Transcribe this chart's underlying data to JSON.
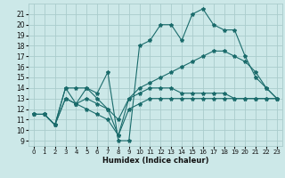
{
  "xlabel": "Humidex (Indice chaleur)",
  "bg_color": "#cce8e8",
  "grid_color": "#aacccc",
  "line_color": "#1a6b6b",
  "xlim": [
    -0.5,
    23.5
  ],
  "ylim": [
    8.5,
    22.0
  ],
  "xticks": [
    0,
    1,
    2,
    3,
    4,
    5,
    6,
    7,
    8,
    9,
    10,
    11,
    12,
    13,
    14,
    15,
    16,
    17,
    18,
    19,
    20,
    21,
    22,
    23
  ],
  "yticks": [
    9,
    10,
    11,
    12,
    13,
    14,
    15,
    16,
    17,
    18,
    19,
    20,
    21
  ],
  "series": [
    {
      "x": [
        0,
        1,
        2,
        3,
        4,
        5,
        6,
        7,
        8,
        9,
        10,
        11,
        12,
        13,
        14,
        15,
        16,
        17,
        18,
        19,
        20,
        21,
        22,
        23
      ],
      "y": [
        11.5,
        11.5,
        10.5,
        14,
        12.5,
        14,
        13.5,
        15.5,
        9.0,
        9.0,
        18.0,
        18.5,
        20.0,
        20.0,
        18.5,
        21.0,
        21.5,
        20.0,
        19.5,
        19.5,
        17.0,
        15.0,
        14.0,
        13.0
      ]
    },
    {
      "x": [
        0,
        1,
        2,
        3,
        4,
        5,
        6,
        7,
        8,
        9,
        10,
        11,
        12,
        13,
        14,
        15,
        16,
        17,
        18,
        19,
        20,
        21,
        22,
        23
      ],
      "y": [
        11.5,
        11.5,
        10.5,
        13.0,
        12.5,
        13.0,
        12.5,
        12.0,
        11.0,
        13.0,
        14.0,
        14.5,
        15.0,
        15.5,
        16.0,
        16.5,
        17.0,
        17.5,
        17.5,
        17.0,
        16.5,
        15.5,
        14.0,
        13.0
      ]
    },
    {
      "x": [
        0,
        1,
        2,
        3,
        4,
        5,
        6,
        7,
        8,
        9,
        10,
        11,
        12,
        13,
        14,
        15,
        16,
        17,
        18,
        19,
        20,
        21,
        22,
        23
      ],
      "y": [
        11.5,
        11.5,
        10.5,
        14.0,
        14.0,
        14.0,
        13.0,
        12.0,
        9.5,
        13.0,
        13.5,
        14.0,
        14.0,
        14.0,
        13.5,
        13.5,
        13.5,
        13.5,
        13.5,
        13.0,
        13.0,
        13.0,
        13.0,
        13.0
      ]
    },
    {
      "x": [
        0,
        1,
        2,
        3,
        4,
        5,
        6,
        7,
        8,
        9,
        10,
        11,
        12,
        13,
        14,
        15,
        16,
        17,
        18,
        19,
        20,
        21,
        22,
        23
      ],
      "y": [
        11.5,
        11.5,
        10.5,
        13.0,
        12.5,
        12.0,
        11.5,
        11.0,
        9.5,
        12.0,
        12.5,
        13.0,
        13.0,
        13.0,
        13.0,
        13.0,
        13.0,
        13.0,
        13.0,
        13.0,
        13.0,
        13.0,
        13.0,
        13.0
      ]
    }
  ]
}
